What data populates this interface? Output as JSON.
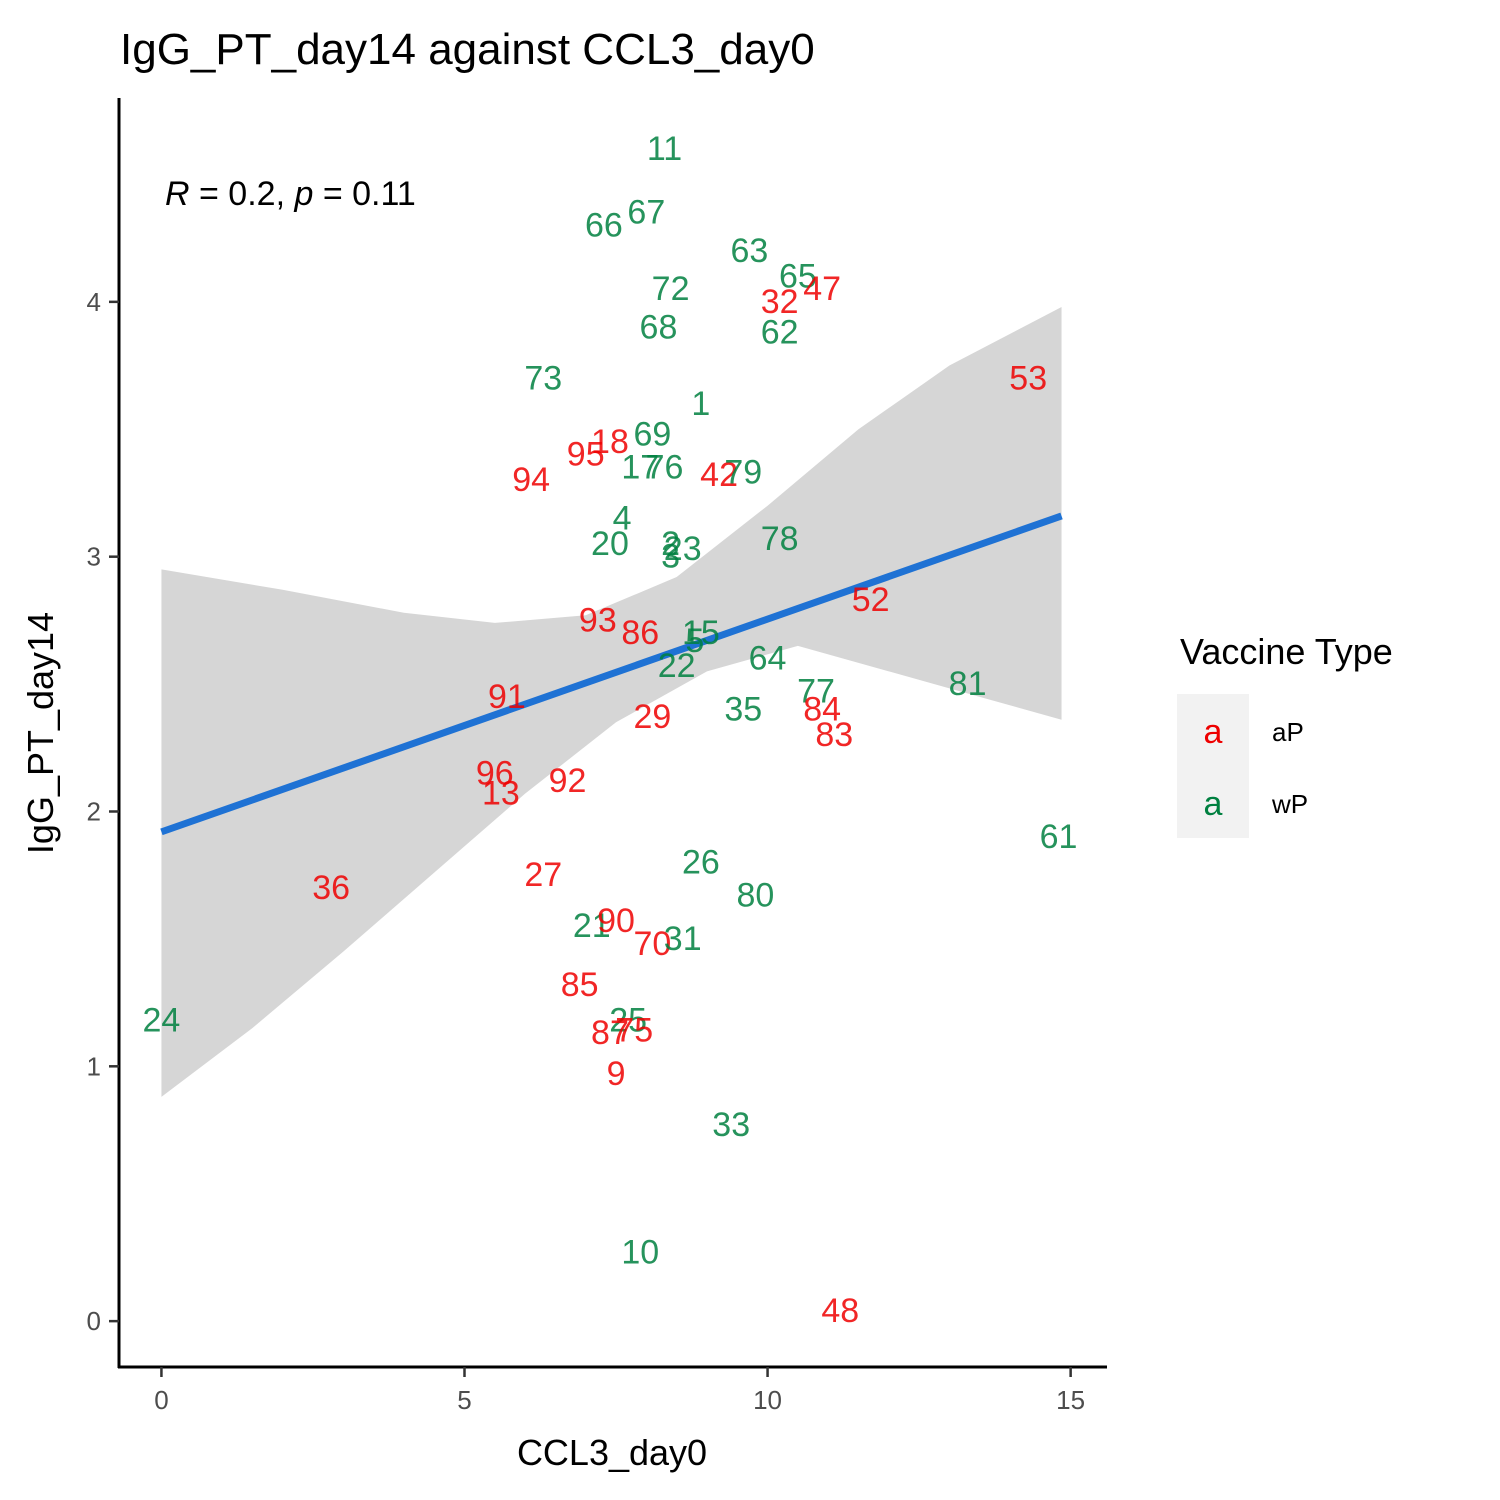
{
  "chart_data": {
    "type": "scatter",
    "title": "IgG_PT_day14 against CCL3_day0",
    "xlabel": "CCL3_day0",
    "ylabel": "IgG_PT_day14",
    "xlim": [
      -0.7,
      15.6
    ],
    "ylim": [
      -0.18,
      4.8
    ],
    "x_ticks": [
      0,
      5,
      10,
      15
    ],
    "y_ticks": [
      0,
      1,
      2,
      3,
      4
    ],
    "grid": false,
    "annotation": {
      "r_symbol": "R",
      "r_value": " = 0.2, ",
      "p_symbol": "p",
      "p_value": " = 0.11"
    },
    "regression": {
      "color": "#1f72d4",
      "x": [
        0,
        14.85
      ],
      "y": [
        1.92,
        3.16
      ],
      "ci_upper": [
        [
          0,
          2.95
        ],
        [
          2,
          2.87
        ],
        [
          4,
          2.78
        ],
        [
          5.5,
          2.74
        ],
        [
          7,
          2.77
        ],
        [
          8.5,
          2.92
        ],
        [
          10,
          3.2
        ],
        [
          11.5,
          3.5
        ],
        [
          13,
          3.75
        ],
        [
          14.85,
          3.98
        ]
      ],
      "ci_lower": [
        [
          0,
          0.88
        ],
        [
          1.5,
          1.15
        ],
        [
          3,
          1.45
        ],
        [
          4.5,
          1.76
        ],
        [
          6,
          2.07
        ],
        [
          7.5,
          2.35
        ],
        [
          9,
          2.55
        ],
        [
          10.5,
          2.65
        ],
        [
          12,
          2.55
        ],
        [
          13.5,
          2.45
        ],
        [
          14.85,
          2.36
        ]
      ]
    },
    "legend": {
      "title": "Vaccine Type",
      "placement": "right",
      "glyph": "a",
      "entries": [
        {
          "name": "aP",
          "color": "#ee0000"
        },
        {
          "name": "wP",
          "color": "#008040"
        }
      ]
    },
    "points": [
      {
        "label": "11",
        "x": 8.3,
        "y": 4.6,
        "group": "wP"
      },
      {
        "label": "66",
        "x": 7.3,
        "y": 4.3,
        "group": "wP"
      },
      {
        "label": "67",
        "x": 8.0,
        "y": 4.35,
        "group": "wP"
      },
      {
        "label": "63",
        "x": 9.7,
        "y": 4.2,
        "group": "wP"
      },
      {
        "label": "65",
        "x": 10.5,
        "y": 4.1,
        "group": "wP"
      },
      {
        "label": "32",
        "x": 10.2,
        "y": 4.0,
        "group": "aP"
      },
      {
        "label": "47",
        "x": 10.9,
        "y": 4.05,
        "group": "aP"
      },
      {
        "label": "72",
        "x": 8.4,
        "y": 4.05,
        "group": "wP"
      },
      {
        "label": "68",
        "x": 8.2,
        "y": 3.9,
        "group": "wP"
      },
      {
        "label": "62",
        "x": 10.2,
        "y": 3.88,
        "group": "wP"
      },
      {
        "label": "73",
        "x": 6.3,
        "y": 3.7,
        "group": "wP"
      },
      {
        "label": "53",
        "x": 14.3,
        "y": 3.7,
        "group": "aP"
      },
      {
        "label": "1",
        "x": 8.9,
        "y": 3.6,
        "group": "wP"
      },
      {
        "label": "18",
        "x": 7.4,
        "y": 3.45,
        "group": "aP"
      },
      {
        "label": "69",
        "x": 8.1,
        "y": 3.48,
        "group": "wP"
      },
      {
        "label": "95",
        "x": 7.0,
        "y": 3.4,
        "group": "aP"
      },
      {
        "label": "17",
        "x": 7.9,
        "y": 3.35,
        "group": "wP"
      },
      {
        "label": "76",
        "x": 8.3,
        "y": 3.35,
        "group": "wP"
      },
      {
        "label": "42",
        "x": 9.2,
        "y": 3.32,
        "group": "aP"
      },
      {
        "label": "79",
        "x": 9.6,
        "y": 3.33,
        "group": "wP"
      },
      {
        "label": "94",
        "x": 6.1,
        "y": 3.3,
        "group": "aP"
      },
      {
        "label": "4",
        "x": 7.6,
        "y": 3.15,
        "group": "wP"
      },
      {
        "label": "20",
        "x": 7.4,
        "y": 3.05,
        "group": "wP"
      },
      {
        "label": "2",
        "x": 8.4,
        "y": 3.05,
        "group": "wP"
      },
      {
        "label": "23",
        "x": 8.6,
        "y": 3.03,
        "group": "wP"
      },
      {
        "label": "3",
        "x": 8.4,
        "y": 3.0,
        "group": "wP"
      },
      {
        "label": "78",
        "x": 10.2,
        "y": 3.07,
        "group": "wP"
      },
      {
        "label": "52",
        "x": 11.7,
        "y": 2.83,
        "group": "aP"
      },
      {
        "label": "93",
        "x": 7.2,
        "y": 2.75,
        "group": "aP"
      },
      {
        "label": "86",
        "x": 7.9,
        "y": 2.7,
        "group": "aP"
      },
      {
        "label": "15",
        "x": 8.9,
        "y": 2.7,
        "group": "wP"
      },
      {
        "label": "5",
        "x": 8.8,
        "y": 2.67,
        "group": "wP"
      },
      {
        "label": "22",
        "x": 8.5,
        "y": 2.57,
        "group": "wP"
      },
      {
        "label": "64",
        "x": 10.0,
        "y": 2.6,
        "group": "wP"
      },
      {
        "label": "81",
        "x": 13.3,
        "y": 2.5,
        "group": "wP"
      },
      {
        "label": "77",
        "x": 10.8,
        "y": 2.47,
        "group": "wP"
      },
      {
        "label": "91",
        "x": 5.7,
        "y": 2.45,
        "group": "aP"
      },
      {
        "label": "35",
        "x": 9.6,
        "y": 2.4,
        "group": "wP"
      },
      {
        "label": "84",
        "x": 10.9,
        "y": 2.4,
        "group": "aP"
      },
      {
        "label": "29",
        "x": 8.1,
        "y": 2.37,
        "group": "aP"
      },
      {
        "label": "83",
        "x": 11.1,
        "y": 2.3,
        "group": "aP"
      },
      {
        "label": "96",
        "x": 5.5,
        "y": 2.15,
        "group": "aP"
      },
      {
        "label": "92",
        "x": 6.7,
        "y": 2.12,
        "group": "aP"
      },
      {
        "label": "13",
        "x": 5.6,
        "y": 2.07,
        "group": "aP"
      },
      {
        "label": "61",
        "x": 14.8,
        "y": 1.9,
        "group": "wP"
      },
      {
        "label": "26",
        "x": 8.9,
        "y": 1.8,
        "group": "wP"
      },
      {
        "label": "27",
        "x": 6.3,
        "y": 1.75,
        "group": "aP"
      },
      {
        "label": "36",
        "x": 2.8,
        "y": 1.7,
        "group": "aP"
      },
      {
        "label": "80",
        "x": 9.8,
        "y": 1.67,
        "group": "wP"
      },
      {
        "label": "21",
        "x": 7.1,
        "y": 1.55,
        "group": "wP"
      },
      {
        "label": "90",
        "x": 7.5,
        "y": 1.57,
        "group": "aP"
      },
      {
        "label": "70",
        "x": 8.1,
        "y": 1.48,
        "group": "aP"
      },
      {
        "label": "31",
        "x": 8.6,
        "y": 1.5,
        "group": "wP"
      },
      {
        "label": "85",
        "x": 6.9,
        "y": 1.32,
        "group": "aP"
      },
      {
        "label": "25",
        "x": 7.7,
        "y": 1.18,
        "group": "wP"
      },
      {
        "label": "87",
        "x": 7.4,
        "y": 1.13,
        "group": "aP"
      },
      {
        "label": "75",
        "x": 7.8,
        "y": 1.14,
        "group": "aP"
      },
      {
        "label": "9",
        "x": 7.5,
        "y": 0.97,
        "group": "aP"
      },
      {
        "label": "24",
        "x": 0.0,
        "y": 1.18,
        "group": "wP"
      },
      {
        "label": "33",
        "x": 9.4,
        "y": 0.77,
        "group": "wP"
      },
      {
        "label": "10",
        "x": 7.9,
        "y": 0.27,
        "group": "wP"
      },
      {
        "label": "48",
        "x": 11.2,
        "y": 0.04,
        "group": "aP"
      }
    ]
  }
}
